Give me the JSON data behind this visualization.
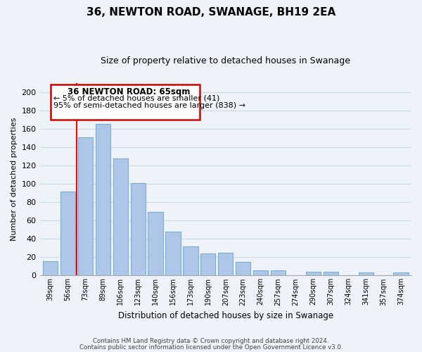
{
  "title": "36, NEWTON ROAD, SWANAGE, BH19 2EA",
  "subtitle": "Size of property relative to detached houses in Swanage",
  "xlabel": "Distribution of detached houses by size in Swanage",
  "ylabel": "Number of detached properties",
  "categories": [
    "39sqm",
    "56sqm",
    "73sqm",
    "89sqm",
    "106sqm",
    "123sqm",
    "140sqm",
    "156sqm",
    "173sqm",
    "190sqm",
    "207sqm",
    "223sqm",
    "240sqm",
    "257sqm",
    "274sqm",
    "290sqm",
    "307sqm",
    "324sqm",
    "341sqm",
    "357sqm",
    "374sqm"
  ],
  "values": [
    16,
    92,
    151,
    165,
    128,
    101,
    69,
    48,
    32,
    24,
    25,
    15,
    6,
    6,
    0,
    4,
    4,
    0,
    3,
    0,
    3
  ],
  "bar_color": "#aec6e8",
  "bar_edge_color": "#7aafd4",
  "red_line_x": 1.5,
  "ylim": [
    0,
    210
  ],
  "yticks": [
    0,
    20,
    40,
    60,
    80,
    100,
    120,
    140,
    160,
    180,
    200
  ],
  "annotation_title": "36 NEWTON ROAD: 65sqm",
  "annotation_line1": "← 5% of detached houses are smaller (41)",
  "annotation_line2": "95% of semi-detached houses are larger (838) →",
  "footer1": "Contains HM Land Registry data © Crown copyright and database right 2024.",
  "footer2": "Contains public sector information licensed under the Open Government Licence v3.0.",
  "bg_color": "#eef2f9",
  "plot_bg_color": "#eef2f9",
  "grid_color": "#d0d8e8",
  "annotation_box_color": "#ffffff",
  "annotation_border_color": "#cc0000"
}
